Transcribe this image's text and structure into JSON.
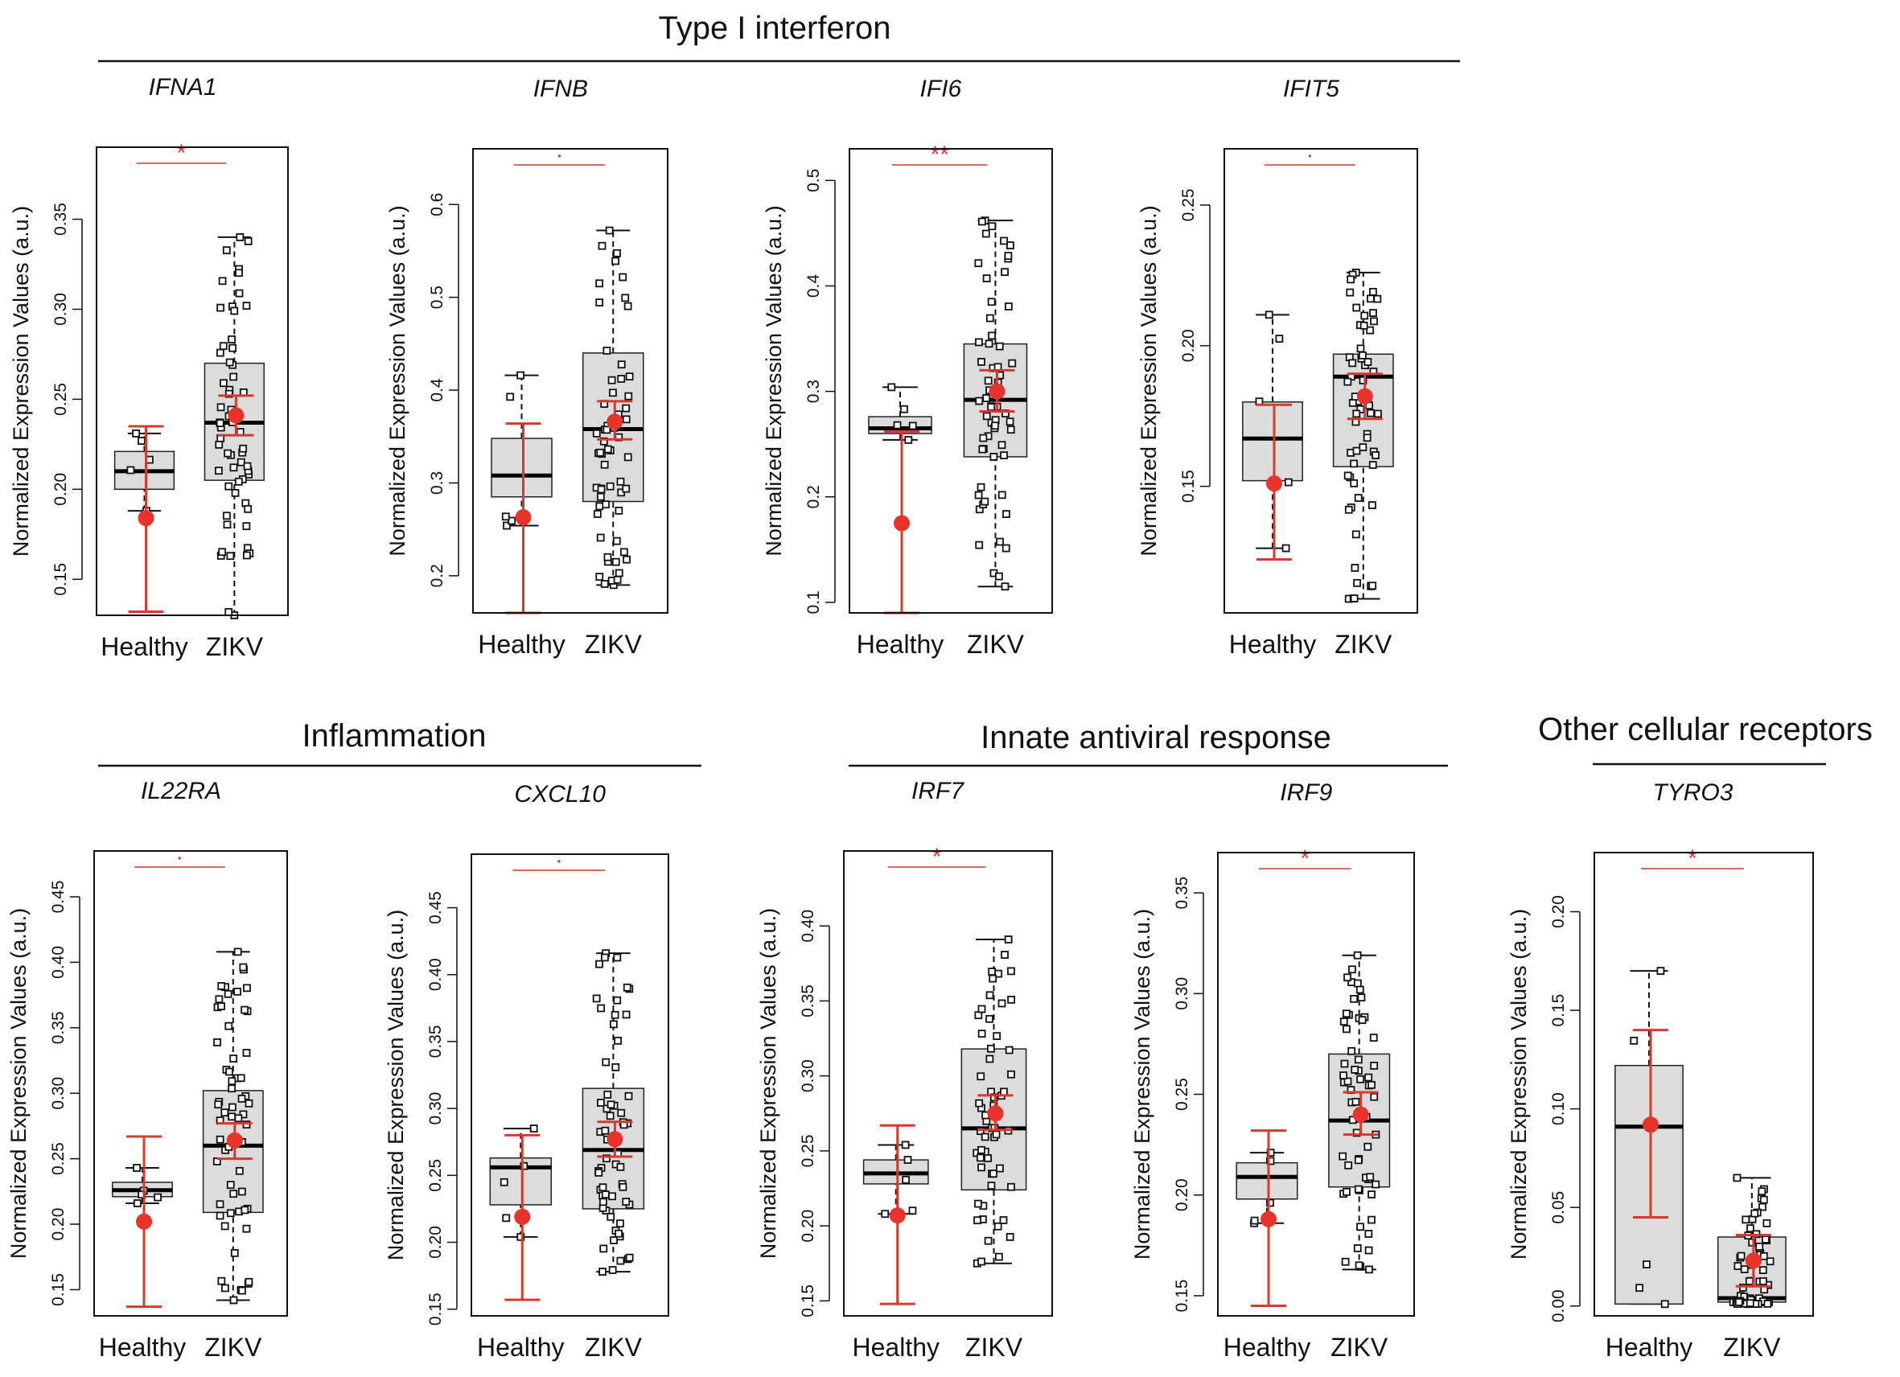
{
  "groups": [
    {
      "title": "Type I interferon"
    },
    {
      "title": "Inflammation"
    },
    {
      "title": "Innate antiviral response"
    },
    {
      "title": "Other cellular receptors"
    }
  ],
  "colors": {
    "box": "#dcdcdc",
    "mean": "#e8322a",
    "errorbar": "#d43a2f",
    "points": "#111111"
  },
  "chart_data": [
    {
      "type": "box",
      "group": "Type I interferon",
      "title": "IFNA1",
      "ylabel": "Normalized Expression Values (a.u.)",
      "categories": [
        "Healthy",
        "ZIKV"
      ],
      "ylim": [
        0.13,
        0.39
      ],
      "yticks": [
        0.15,
        0.2,
        0.25,
        0.3,
        0.35
      ],
      "tick_labels": [
        "0.15",
        "0.20",
        "0.25",
        "0.30",
        "0.35"
      ],
      "boxes": [
        {
          "whisker_low": 0.188,
          "q1": 0.2,
          "median": 0.21,
          "q3": 0.221,
          "whisker_high": 0.231
        },
        {
          "whisker_low": 0.13,
          "q1": 0.205,
          "median": 0.237,
          "q3": 0.27,
          "whisker_high": 0.34
        }
      ],
      "means": [
        {
          "mean": 0.184,
          "low": 0.132,
          "high": 0.235
        },
        {
          "mean": 0.241,
          "low": 0.23,
          "high": 0.252
        }
      ],
      "n_points": [
        5,
        60
      ],
      "significance": "*"
    },
    {
      "type": "box",
      "group": "Type I interferon",
      "title": "IFNB",
      "ylabel": "Normalized Expression Values (a.u.)",
      "categories": [
        "Healthy",
        "ZIKV"
      ],
      "ylim": [
        0.16,
        0.66
      ],
      "yticks": [
        0.2,
        0.3,
        0.4,
        0.5,
        0.6
      ],
      "tick_labels": [
        "0.2",
        "0.3",
        "0.4",
        "0.5",
        "0.6"
      ],
      "boxes": [
        {
          "whisker_low": 0.254,
          "q1": 0.285,
          "median": 0.308,
          "q3": 0.348,
          "whisker_high": 0.416
        },
        {
          "whisker_low": 0.19,
          "q1": 0.28,
          "median": 0.358,
          "q3": 0.44,
          "whisker_high": 0.572
        }
      ],
      "means": [
        {
          "mean": 0.263,
          "low": 0.16,
          "high": 0.364
        },
        {
          "mean": 0.366,
          "low": 0.347,
          "high": 0.388
        }
      ],
      "n_points": [
        5,
        60
      ],
      "significance": "·"
    },
    {
      "type": "box",
      "group": "Type I interferon",
      "title": "IFI6",
      "ylabel": "Normalized Expression Values (a.u.)",
      "categories": [
        "Healthy",
        "ZIKV"
      ],
      "ylim": [
        0.09,
        0.53
      ],
      "yticks": [
        0.1,
        0.2,
        0.3,
        0.4,
        0.5
      ],
      "tick_labels": [
        "0.1",
        "0.2",
        "0.3",
        "0.4",
        "0.5"
      ],
      "boxes": [
        {
          "whisker_low": 0.254,
          "q1": 0.26,
          "median": 0.265,
          "q3": 0.276,
          "whisker_high": 0.304
        },
        {
          "whisker_low": 0.115,
          "q1": 0.238,
          "median": 0.292,
          "q3": 0.345,
          "whisker_high": 0.462
        }
      ],
      "means": [
        {
          "mean": 0.175,
          "low": 0.09,
          "high": 0.262
        },
        {
          "mean": 0.3,
          "low": 0.281,
          "high": 0.32
        }
      ],
      "n_points": [
        5,
        60
      ],
      "significance": "**"
    },
    {
      "type": "box",
      "group": "Type I interferon",
      "title": "IFIT5",
      "ylabel": "Normalized Expression Values (a.u.)",
      "categories": [
        "Healthy",
        "ZIKV"
      ],
      "ylim": [
        0.105,
        0.27
      ],
      "yticks": [
        0.15,
        0.2,
        0.25
      ],
      "tick_labels": [
        "0.15",
        "0.20",
        "0.25"
      ],
      "boxes": [
        {
          "whisker_low": 0.128,
          "q1": 0.152,
          "median": 0.167,
          "q3": 0.18,
          "whisker_high": 0.211
        },
        {
          "whisker_low": 0.11,
          "q1": 0.157,
          "median": 0.189,
          "q3": 0.197,
          "whisker_high": 0.226
        }
      ],
      "means": [
        {
          "mean": 0.151,
          "low": 0.124,
          "high": 0.179
        },
        {
          "mean": 0.182,
          "low": 0.174,
          "high": 0.19
        }
      ],
      "n_points": [
        5,
        60
      ],
      "significance": "·"
    },
    {
      "type": "box",
      "group": "Inflammation",
      "title": "IL22RA",
      "ylabel": "Normalized Expression Values (a.u.)",
      "categories": [
        "Healthy",
        "ZIKV"
      ],
      "ylim": [
        0.13,
        0.485
      ],
      "yticks": [
        0.15,
        0.2,
        0.25,
        0.3,
        0.35,
        0.4,
        0.45
      ],
      "tick_labels": [
        "0.15",
        "0.20",
        "0.25",
        "0.30",
        "0.35",
        "0.40",
        "0.45"
      ],
      "boxes": [
        {
          "whisker_low": 0.216,
          "q1": 0.221,
          "median": 0.226,
          "q3": 0.232,
          "whisker_high": 0.243
        },
        {
          "whisker_low": 0.142,
          "q1": 0.209,
          "median": 0.26,
          "q3": 0.302,
          "whisker_high": 0.408
        }
      ],
      "means": [
        {
          "mean": 0.202,
          "low": 0.137,
          "high": 0.267
        },
        {
          "mean": 0.264,
          "low": 0.25,
          "high": 0.277
        }
      ],
      "n_points": [
        5,
        60
      ],
      "significance": "·"
    },
    {
      "type": "box",
      "group": "Inflammation",
      "title": "CXCL10",
      "ylabel": "Normalized Expression Values (a.u.)",
      "categories": [
        "Healthy",
        "ZIKV"
      ],
      "ylim": [
        0.145,
        0.49
      ],
      "yticks": [
        0.15,
        0.2,
        0.25,
        0.3,
        0.35,
        0.4,
        0.45
      ],
      "tick_labels": [
        "0.15",
        "0.20",
        "0.25",
        "0.30",
        "0.35",
        "0.40",
        "0.45"
      ],
      "boxes": [
        {
          "whisker_low": 0.204,
          "q1": 0.228,
          "median": 0.256,
          "q3": 0.263,
          "whisker_high": 0.285
        },
        {
          "whisker_low": 0.178,
          "q1": 0.225,
          "median": 0.269,
          "q3": 0.315,
          "whisker_high": 0.416
        }
      ],
      "means": [
        {
          "mean": 0.219,
          "low": 0.157,
          "high": 0.28
        },
        {
          "mean": 0.277,
          "low": 0.264,
          "high": 0.29
        }
      ],
      "n_points": [
        5,
        60
      ],
      "significance": "·"
    },
    {
      "type": "box",
      "group": "Innate antiviral response",
      "title": "IRF7",
      "ylabel": "Normalized Expression Values (a.u.)",
      "categories": [
        "Healthy",
        "ZIKV"
      ],
      "ylim": [
        0.14,
        0.45
      ],
      "yticks": [
        0.15,
        0.2,
        0.25,
        0.3,
        0.35,
        0.4
      ],
      "tick_labels": [
        "0.15",
        "0.20",
        "0.25",
        "0.30",
        "0.35",
        "0.40"
      ],
      "boxes": [
        {
          "whisker_low": 0.208,
          "q1": 0.228,
          "median": 0.235,
          "q3": 0.244,
          "whisker_high": 0.254
        },
        {
          "whisker_low": 0.175,
          "q1": 0.224,
          "median": 0.265,
          "q3": 0.318,
          "whisker_high": 0.391
        }
      ],
      "means": [
        {
          "mean": 0.207,
          "low": 0.148,
          "high": 0.267
        },
        {
          "mean": 0.275,
          "low": 0.264,
          "high": 0.287
        }
      ],
      "n_points": [
        5,
        60
      ],
      "significance": "*"
    },
    {
      "type": "box",
      "group": "Innate antiviral response",
      "title": "IRF9",
      "ylabel": "Normalized Expression Values (a.u.)",
      "categories": [
        "Healthy",
        "ZIKV"
      ],
      "ylim": [
        0.14,
        0.37
      ],
      "yticks": [
        0.15,
        0.2,
        0.25,
        0.3,
        0.35
      ],
      "tick_labels": [
        "0.15",
        "0.20",
        "0.25",
        "0.30",
        "0.35"
      ],
      "boxes": [
        {
          "whisker_low": 0.186,
          "q1": 0.198,
          "median": 0.209,
          "q3": 0.216,
          "whisker_high": 0.221
        },
        {
          "whisker_low": 0.163,
          "q1": 0.204,
          "median": 0.237,
          "q3": 0.27,
          "whisker_high": 0.319
        }
      ],
      "means": [
        {
          "mean": 0.188,
          "low": 0.145,
          "high": 0.232
        },
        {
          "mean": 0.24,
          "low": 0.23,
          "high": 0.251
        }
      ],
      "n_points": [
        5,
        60
      ],
      "significance": "*"
    },
    {
      "type": "box",
      "group": "Other cellular receptors",
      "title": "TYRO3",
      "ylabel": "Normalized Expression Values (a.u.)",
      "categories": [
        "Healthy",
        "ZIKV"
      ],
      "ylim": [
        -0.005,
        0.23
      ],
      "yticks": [
        0.0,
        0.05,
        0.1,
        0.15,
        0.2
      ],
      "tick_labels": [
        "0.00",
        "0.05",
        "0.10",
        "0.15",
        "0.20"
      ],
      "boxes": [
        {
          "whisker_low": 0.001,
          "q1": 0.001,
          "median": 0.091,
          "q3": 0.122,
          "whisker_high": 0.17
        },
        {
          "whisker_low": 0.001,
          "q1": 0.002,
          "median": 0.004,
          "q3": 0.035,
          "whisker_high": 0.065
        }
      ],
      "means": [
        {
          "mean": 0.092,
          "low": 0.045,
          "high": 0.14
        },
        {
          "mean": 0.023,
          "low": 0.01,
          "high": 0.036
        }
      ],
      "n_points": [
        5,
        60
      ],
      "significance": "*"
    }
  ]
}
